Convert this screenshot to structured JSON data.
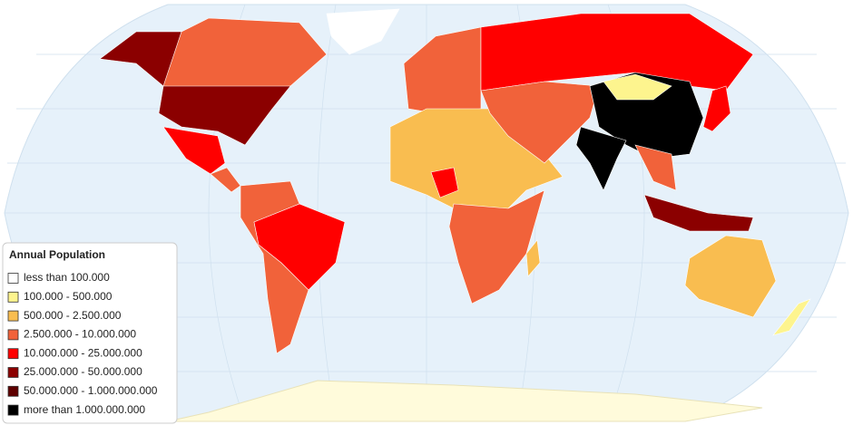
{
  "legend": {
    "title": "Annual Population",
    "items": [
      {
        "label": "less than 100.000",
        "color": "#ffffff"
      },
      {
        "label": "100.000 - 500.000",
        "color": "#fdf48e"
      },
      {
        "label": "500.000 - 2.500.000",
        "color": "#f9bd50"
      },
      {
        "label": "2.500.000 - 10.000.000",
        "color": "#f1623a"
      },
      {
        "label": "10.000.000 - 25.000.000",
        "color": "#ff0000"
      },
      {
        "label": "25.000.000 - 50.000.000",
        "color": "#8b0000"
      },
      {
        "label": "50.000.000 - 1.000.000.000",
        "color": "#5e0000"
      },
      {
        "label": "more than 1.000.000.000",
        "color": "#000000"
      }
    ]
  }
}
